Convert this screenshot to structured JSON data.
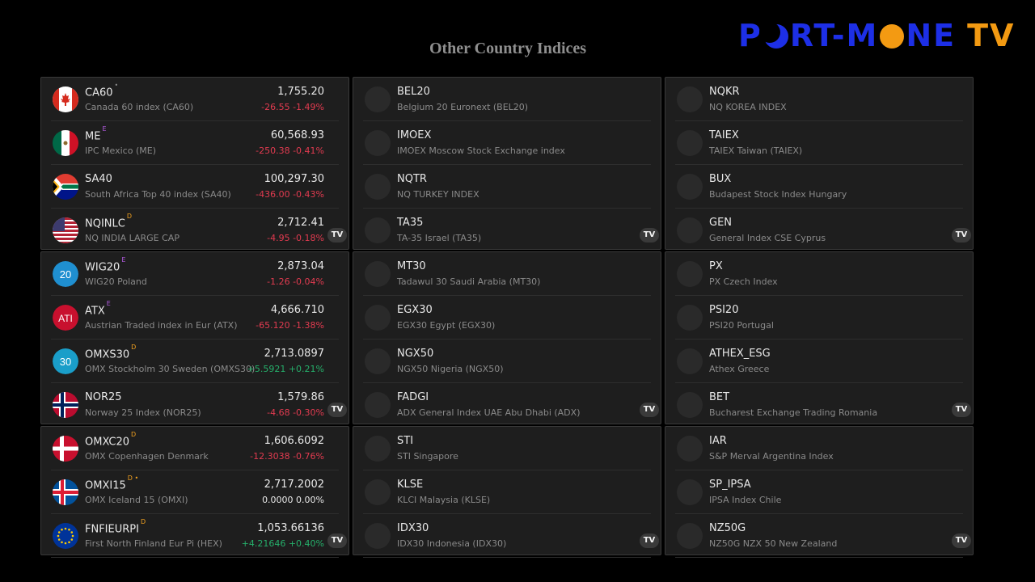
{
  "page": {
    "title": "Other Country Indices",
    "logo": {
      "part1": "P",
      "part2": "RT-M",
      "part3": "NE",
      "part4": "TV"
    }
  },
  "badge_label": "TV",
  "panels": [
    {
      "rows": [
        {
          "symbol": "CA60",
          "sup": "•",
          "name": "Canada 60 index (CA60)",
          "price": "1,755.20",
          "change": "-26.55  -1.49%",
          "dir": "neg",
          "icon": "canada-flag-icon"
        },
        {
          "symbol": "ME",
          "sup": "E",
          "name": "IPC Mexico (ME)",
          "price": "60,568.93",
          "change": "-250.38  -0.41%",
          "dir": "neg",
          "icon": "mexico-flag-icon"
        },
        {
          "symbol": "SA40",
          "sup": "",
          "name": "South Africa Top 40 index (SA40)",
          "price": "100,297.30",
          "change": "-436.00  -0.43%",
          "dir": "neg",
          "icon": "south-africa-flag-icon"
        },
        {
          "symbol": "NQINLC",
          "sup": "D",
          "name": "NQ INDIA LARGE CAP",
          "price": "2,712.41",
          "change": "-4.95  -0.18%",
          "dir": "neg",
          "icon": "usa-flag-icon"
        }
      ]
    },
    {
      "rows": [
        {
          "symbol": "BEL20",
          "name": "Belgium 20 Euronext (BEL20)"
        },
        {
          "symbol": "IMOEX",
          "name": "IMOEX Moscow Stock Exchange index"
        },
        {
          "symbol": "NQTR",
          "name": "NQ TURKEY INDEX"
        },
        {
          "symbol": "TA35",
          "name": "TA-35 Israel (TA35)"
        }
      ]
    },
    {
      "rows": [
        {
          "symbol": "NQKR",
          "name": "NQ KOREA INDEX"
        },
        {
          "symbol": "TAIEX",
          "name": "TAIEX Taiwan (TAIEX)"
        },
        {
          "symbol": "BUX",
          "name": "Budapest Stock Index Hungary"
        },
        {
          "symbol": "GEN",
          "name": "General Index CSE Cyprus"
        }
      ]
    },
    {
      "rows": [
        {
          "symbol": "WIG20",
          "sup": "E",
          "name": "WIG20 Poland",
          "price": "2,873.04",
          "change": "-1.26  -0.04%",
          "dir": "neg",
          "icon": "wig20-logo-icon"
        },
        {
          "symbol": "ATX",
          "sup": "E",
          "name": "Austrian Traded index in Eur (ATX)",
          "price": "4,666.710",
          "change": "-65.120  -1.38%",
          "dir": "neg",
          "icon": "atx-logo-icon"
        },
        {
          "symbol": "OMXS30",
          "sup": "D",
          "name": "OMX Stockholm 30 Sweden (OMXS30)",
          "price": "2,713.0897",
          "change": "+5.5921  +0.21%",
          "dir": "pos",
          "icon": "omxs30-logo-icon"
        },
        {
          "symbol": "NOR25",
          "sup": "",
          "name": "Norway 25 Index (NOR25)",
          "price": "1,579.86",
          "change": "-4.68  -0.30%",
          "dir": "neg",
          "icon": "norway-flag-icon"
        }
      ]
    },
    {
      "rows": [
        {
          "symbol": "MT30",
          "name": "Tadawul 30 Saudi Arabia (MT30)"
        },
        {
          "symbol": "EGX30",
          "name": "EGX30 Egypt (EGX30)"
        },
        {
          "symbol": "NGX50",
          "name": "NGX50 Nigeria (NGX50)"
        },
        {
          "symbol": "FADGI",
          "name": "ADX General Index UAE Abu Dhabi (ADX)"
        }
      ]
    },
    {
      "rows": [
        {
          "symbol": "PX",
          "name": "PX Czech Index"
        },
        {
          "symbol": "PSI20",
          "name": "PSI20 Portugal"
        },
        {
          "symbol": "ATHEX_ESG",
          "name": "Athex Greece"
        },
        {
          "symbol": "BET",
          "name": "Bucharest Exchange Trading Romania"
        }
      ]
    },
    {
      "rows": [
        {
          "symbol": "OMXC20",
          "sup": "D",
          "name": "OMX Copenhagen Denmark",
          "price": "1,606.6092",
          "change": "-12.3038  -0.76%",
          "dir": "neg",
          "icon": "denmark-flag-icon"
        },
        {
          "symbol": "OMXI15",
          "sup": "D •",
          "name": "OMX Iceland 15 (OMXI)",
          "price": "2,717.2002",
          "change": "0.0000  0.00%",
          "dir": "zero",
          "icon": "iceland-flag-icon"
        },
        {
          "symbol": "FNFIEURPI",
          "sup": "D",
          "name": "First North Finland Eur Pi (HEX)",
          "price": "1,053.66136",
          "change": "+4.21646  +0.40%",
          "dir": "pos",
          "icon": "eu-flag-icon"
        }
      ]
    },
    {
      "rows": [
        {
          "symbol": "STI",
          "name": "STI Singapore"
        },
        {
          "symbol": "KLSE",
          "name": "KLCI Malaysia (KLSE)"
        },
        {
          "symbol": "IDX30",
          "name": "IDX30 Indonesia (IDX30)"
        }
      ]
    },
    {
      "rows": [
        {
          "symbol": "IAR",
          "name": "S&P Merval Argentina Index"
        },
        {
          "symbol": "SP_IPSA",
          "name": "IPSA Index Chile"
        },
        {
          "symbol": "NZ50G",
          "name": "NZ50G NZX 50 New Zealand"
        }
      ]
    }
  ],
  "icon_labels": {
    "wig20": "20",
    "atx": "ATI",
    "omxs30": "30"
  }
}
